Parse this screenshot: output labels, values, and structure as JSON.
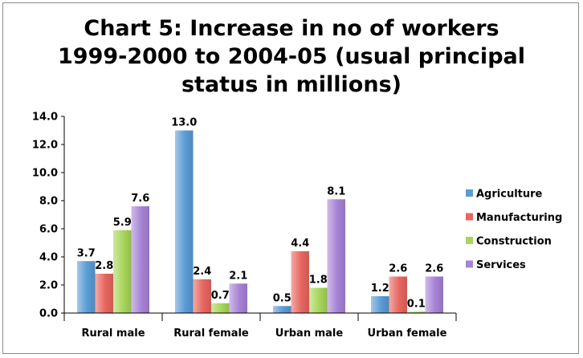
{
  "chart_data": {
    "type": "bar",
    "title_lines": [
      "Chart 5: Increase in no of workers",
      "1999-2000 to 2004-05 (usual principal",
      "status in millions)"
    ],
    "categories": [
      "Rural male",
      "Rural female",
      "Urban male",
      "Urban female"
    ],
    "series": [
      {
        "name": "Agriculture",
        "values": [
          3.7,
          13.0,
          0.5,
          1.2
        ],
        "color": "#5b9bd5"
      },
      {
        "name": "Manufacturing",
        "values": [
          2.8,
          2.4,
          4.4,
          2.6
        ],
        "color": "#e8665f"
      },
      {
        "name": "Construction",
        "values": [
          5.9,
          0.7,
          1.8,
          0.1
        ],
        "color": "#a8d65a"
      },
      {
        "name": "Services",
        "values": [
          7.6,
          2.1,
          8.1,
          2.6
        ],
        "color": "#a783d6"
      }
    ],
    "ylim": [
      0,
      14
    ],
    "yticks": [
      "0.0",
      "2.0",
      "4.0",
      "6.0",
      "8.0",
      "10.0",
      "12.0",
      "14.0"
    ],
    "legend_position": "right",
    "grid": false
  }
}
